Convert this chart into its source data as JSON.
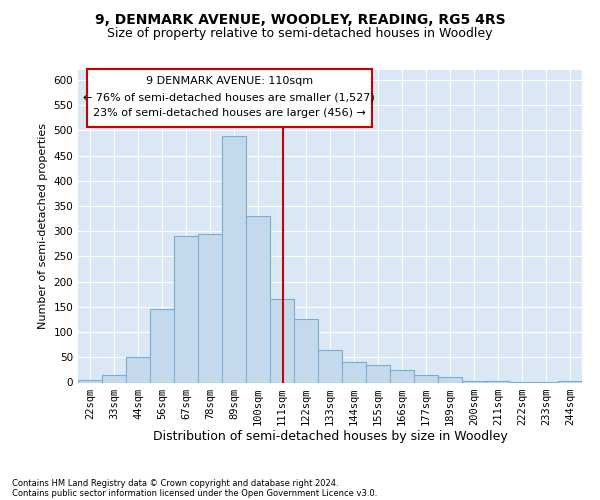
{
  "title": "9, DENMARK AVENUE, WOODLEY, READING, RG5 4RS",
  "subtitle": "Size of property relative to semi-detached houses in Woodley",
  "xlabel": "Distribution of semi-detached houses by size in Woodley",
  "ylabel": "Number of semi-detached properties",
  "footer1": "Contains HM Land Registry data © Crown copyright and database right 2024.",
  "footer2": "Contains public sector information licensed under the Open Government Licence v3.0.",
  "annotation_title": "9 DENMARK AVENUE: 110sqm",
  "annotation_line1": "← 76% of semi-detached houses are smaller (1,527)",
  "annotation_line2": "23% of semi-detached houses are larger (456) →",
  "property_line_x": 110.5,
  "categories": [
    "22sqm",
    "33sqm",
    "44sqm",
    "56sqm",
    "67sqm",
    "78sqm",
    "89sqm",
    "100sqm",
    "111sqm",
    "122sqm",
    "133sqm",
    "144sqm",
    "155sqm",
    "166sqm",
    "177sqm",
    "189sqm",
    "200sqm",
    "211sqm",
    "222sqm",
    "233sqm",
    "244sqm"
  ],
  "bin_edges": [
    16.5,
    27.5,
    38.5,
    49.5,
    60.5,
    71.5,
    82.5,
    93.5,
    104.5,
    115.5,
    126.5,
    137.5,
    148.5,
    159.5,
    170.5,
    181.5,
    192.5,
    203.5,
    214.5,
    225.5,
    236.5,
    247.5
  ],
  "values": [
    5,
    15,
    50,
    145,
    290,
    295,
    490,
    330,
    165,
    125,
    65,
    40,
    35,
    25,
    15,
    10,
    3,
    3,
    1,
    1,
    3
  ],
  "bar_color": "#c5d9ed",
  "bar_edge_color": "#7badd1",
  "line_color": "#cc0000",
  "background_color": "#dae8f5",
  "grid_color": "#ffffff",
  "ylim": [
    0,
    620
  ],
  "yticks": [
    0,
    50,
    100,
    150,
    200,
    250,
    300,
    350,
    400,
    450,
    500,
    550,
    600
  ],
  "title_fontsize": 10,
  "subtitle_fontsize": 9,
  "xlabel_fontsize": 9,
  "ylabel_fontsize": 8,
  "tick_fontsize": 7.5,
  "annotation_fontsize": 8,
  "footer_fontsize": 6
}
